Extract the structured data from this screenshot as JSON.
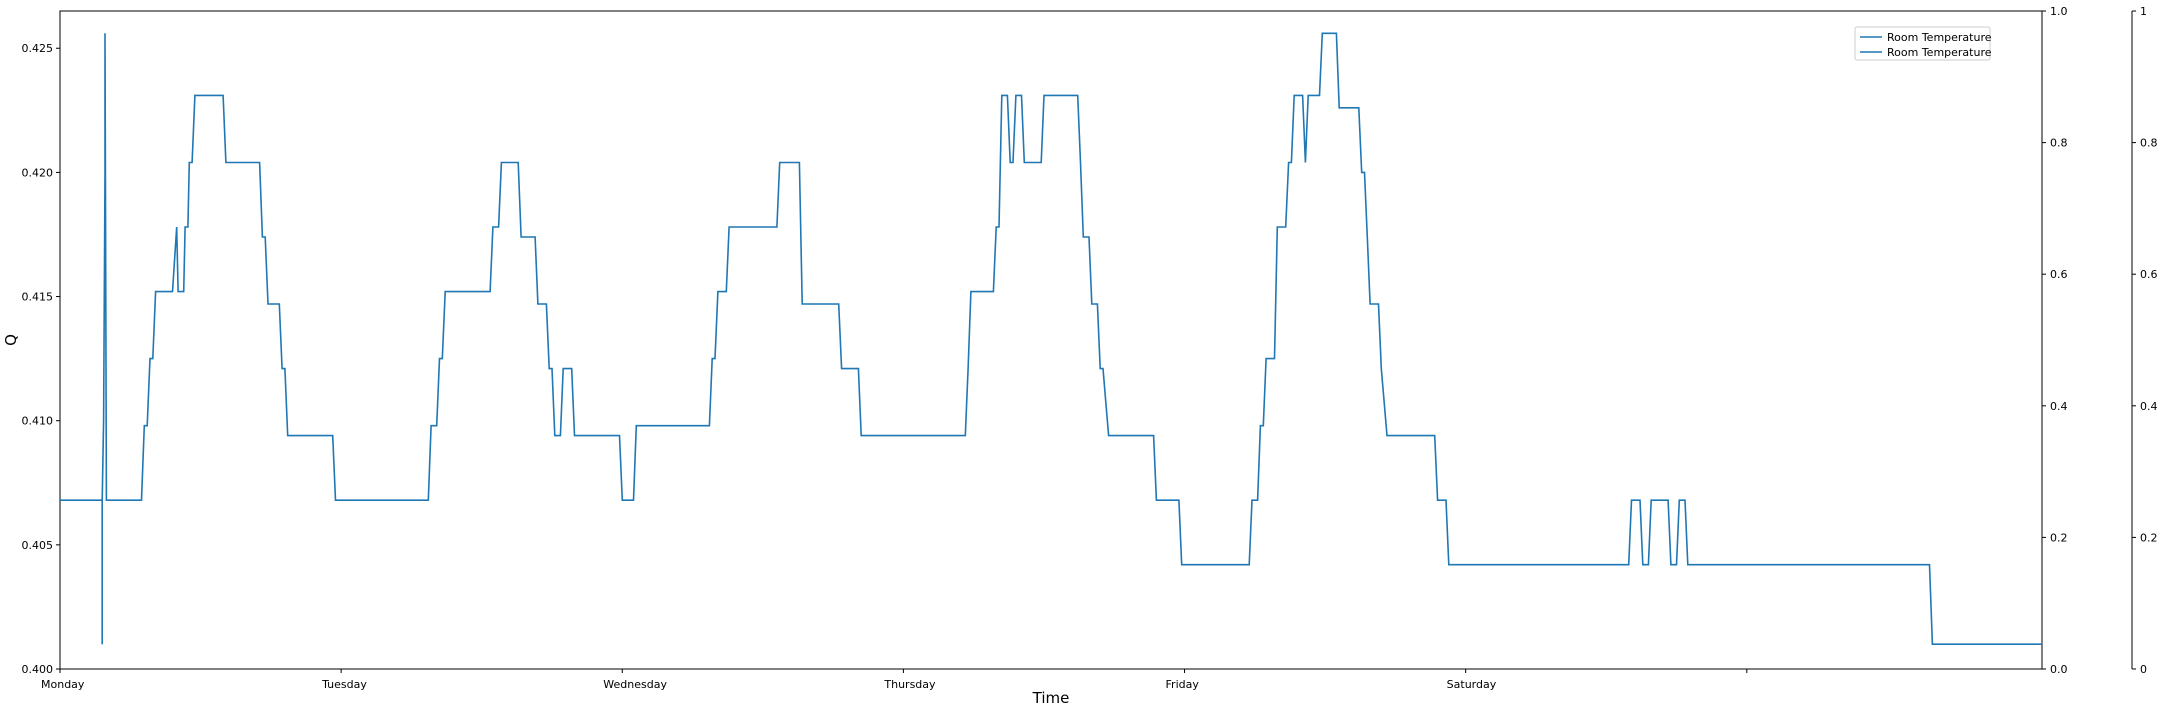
{
  "chart_data": {
    "type": "line",
    "title": "",
    "xlabel": "Time",
    "ylabel": "Q",
    "x_ticks": [
      "Monday",
      "Tuesday",
      "Wednesday",
      "Thursday",
      "Friday",
      "Saturday",
      ""
    ],
    "ylim": [
      0.4,
      0.4265
    ],
    "y_ticks": [
      0.4,
      0.405,
      0.41,
      0.415,
      0.42,
      0.425
    ],
    "y_tick_labels": [
      "0.400",
      "0.405",
      "0.410",
      "0.415",
      "0.420",
      "0.425"
    ],
    "secondary_axes": [
      {
        "ylim": [
          0,
          1
        ],
        "ticks": [
          "0.0",
          "0.2",
          "0.4",
          "0.6",
          "0.8",
          "1.0"
        ]
      },
      {
        "ylim": [
          0,
          1
        ],
        "ticks": [
          "0",
          "0.2",
          "0.4",
          "0.6",
          "0.8",
          "1"
        ]
      }
    ],
    "legend": {
      "position": "top-right",
      "entries": [
        "Room Temperature",
        "Room Temperature"
      ]
    },
    "grid": false,
    "color": "#1f77b4",
    "series": [
      {
        "name": "Room Temperature",
        "x_unit": "days since Monday 00:00",
        "points": [
          [
            0.0,
            0.4068
          ],
          [
            0.15,
            0.4068
          ],
          [
            0.15,
            0.401
          ],
          [
            0.15,
            0.4068
          ],
          [
            0.155,
            0.41
          ],
          [
            0.16,
            0.42
          ],
          [
            0.16,
            0.4256
          ],
          [
            0.165,
            0.4068
          ],
          [
            0.29,
            0.4068
          ],
          [
            0.3,
            0.4098
          ],
          [
            0.31,
            0.4098
          ],
          [
            0.32,
            0.4125
          ],
          [
            0.33,
            0.4125
          ],
          [
            0.34,
            0.4152
          ],
          [
            0.4,
            0.4152
          ],
          [
            0.415,
            0.4178
          ],
          [
            0.42,
            0.4152
          ],
          [
            0.44,
            0.4152
          ],
          [
            0.445,
            0.4178
          ],
          [
            0.455,
            0.4178
          ],
          [
            0.46,
            0.4204
          ],
          [
            0.47,
            0.4204
          ],
          [
            0.48,
            0.4231
          ],
          [
            0.58,
            0.4231
          ],
          [
            0.59,
            0.4204
          ],
          [
            0.71,
            0.4204
          ],
          [
            0.72,
            0.4174
          ],
          [
            0.73,
            0.4174
          ],
          [
            0.74,
            0.4147
          ],
          [
            0.78,
            0.4147
          ],
          [
            0.79,
            0.4121
          ],
          [
            0.8,
            0.4121
          ],
          [
            0.81,
            0.4094
          ],
          [
            0.97,
            0.4094
          ],
          [
            0.98,
            0.4068
          ],
          [
            1.31,
            0.4068
          ],
          [
            1.32,
            0.4098
          ],
          [
            1.34,
            0.4098
          ],
          [
            1.35,
            0.4125
          ],
          [
            1.36,
            0.4125
          ],
          [
            1.37,
            0.4152
          ],
          [
            1.53,
            0.4152
          ],
          [
            1.54,
            0.4178
          ],
          [
            1.56,
            0.4178
          ],
          [
            1.57,
            0.4204
          ],
          [
            1.63,
            0.4204
          ],
          [
            1.64,
            0.4174
          ],
          [
            1.69,
            0.4174
          ],
          [
            1.7,
            0.4147
          ],
          [
            1.73,
            0.4147
          ],
          [
            1.74,
            0.4121
          ],
          [
            1.75,
            0.4121
          ],
          [
            1.76,
            0.4094
          ],
          [
            1.78,
            0.4094
          ],
          [
            1.79,
            0.4121
          ],
          [
            1.82,
            0.4121
          ],
          [
            1.83,
            0.4094
          ],
          [
            1.99,
            0.4094
          ],
          [
            2.0,
            0.4068
          ],
          [
            2.04,
            0.4068
          ],
          [
            2.05,
            0.4098
          ],
          [
            2.31,
            0.4098
          ],
          [
            2.32,
            0.4125
          ],
          [
            2.33,
            0.4125
          ],
          [
            2.34,
            0.4152
          ],
          [
            2.37,
            0.4152
          ],
          [
            2.38,
            0.4178
          ],
          [
            2.55,
            0.4178
          ],
          [
            2.56,
            0.4204
          ],
          [
            2.63,
            0.4204
          ],
          [
            2.64,
            0.4147
          ],
          [
            2.77,
            0.4147
          ],
          [
            2.78,
            0.4121
          ],
          [
            2.84,
            0.4121
          ],
          [
            2.85,
            0.4094
          ],
          [
            3.22,
            0.4094
          ],
          [
            3.23,
            0.4121
          ],
          [
            3.24,
            0.4152
          ],
          [
            3.32,
            0.4152
          ],
          [
            3.33,
            0.4178
          ],
          [
            3.34,
            0.4178
          ],
          [
            3.35,
            0.4231
          ],
          [
            3.37,
            0.4231
          ],
          [
            3.38,
            0.4204
          ],
          [
            3.39,
            0.4204
          ],
          [
            3.4,
            0.4231
          ],
          [
            3.42,
            0.4231
          ],
          [
            3.43,
            0.4204
          ],
          [
            3.49,
            0.4204
          ],
          [
            3.5,
            0.4231
          ],
          [
            3.62,
            0.4231
          ],
          [
            3.63,
            0.4204
          ],
          [
            3.64,
            0.4174
          ],
          [
            3.66,
            0.4174
          ],
          [
            3.67,
            0.4147
          ],
          [
            3.69,
            0.4147
          ],
          [
            3.7,
            0.4121
          ],
          [
            3.71,
            0.4121
          ],
          [
            3.73,
            0.4094
          ],
          [
            3.89,
            0.4094
          ],
          [
            3.9,
            0.4068
          ],
          [
            3.98,
            0.4068
          ],
          [
            3.99,
            0.4042
          ],
          [
            4.23,
            0.4042
          ],
          [
            4.24,
            0.4068
          ],
          [
            4.26,
            0.4068
          ],
          [
            4.27,
            0.4098
          ],
          [
            4.28,
            0.4098
          ],
          [
            4.29,
            0.4125
          ],
          [
            4.32,
            0.4125
          ],
          [
            4.33,
            0.4178
          ],
          [
            4.36,
            0.4178
          ],
          [
            4.37,
            0.4204
          ],
          [
            4.38,
            0.4204
          ],
          [
            4.39,
            0.4231
          ],
          [
            4.42,
            0.4231
          ],
          [
            4.43,
            0.4204
          ],
          [
            4.44,
            0.4231
          ],
          [
            4.48,
            0.4231
          ],
          [
            4.49,
            0.4256
          ],
          [
            4.54,
            0.4256
          ],
          [
            4.55,
            0.4226
          ],
          [
            4.62,
            0.4226
          ],
          [
            4.63,
            0.42
          ],
          [
            4.64,
            0.42
          ],
          [
            4.65,
            0.4174
          ],
          [
            4.66,
            0.4147
          ],
          [
            4.69,
            0.4147
          ],
          [
            4.7,
            0.4121
          ],
          [
            4.72,
            0.4094
          ],
          [
            4.89,
            0.4094
          ],
          [
            4.9,
            0.4068
          ],
          [
            4.93,
            0.4068
          ],
          [
            4.94,
            0.4042
          ],
          [
            5.58,
            0.4042
          ],
          [
            5.59,
            0.4068
          ],
          [
            5.62,
            0.4068
          ],
          [
            5.63,
            0.4042
          ],
          [
            5.65,
            0.4042
          ],
          [
            5.66,
            0.4068
          ],
          [
            5.72,
            0.4068
          ],
          [
            5.73,
            0.4042
          ],
          [
            5.75,
            0.4042
          ],
          [
            5.76,
            0.4068
          ],
          [
            5.78,
            0.4068
          ],
          [
            5.79,
            0.4042
          ],
          [
            6.65,
            0.4042
          ],
          [
            6.66,
            0.401
          ],
          [
            7.05,
            0.401
          ]
        ]
      }
    ]
  }
}
